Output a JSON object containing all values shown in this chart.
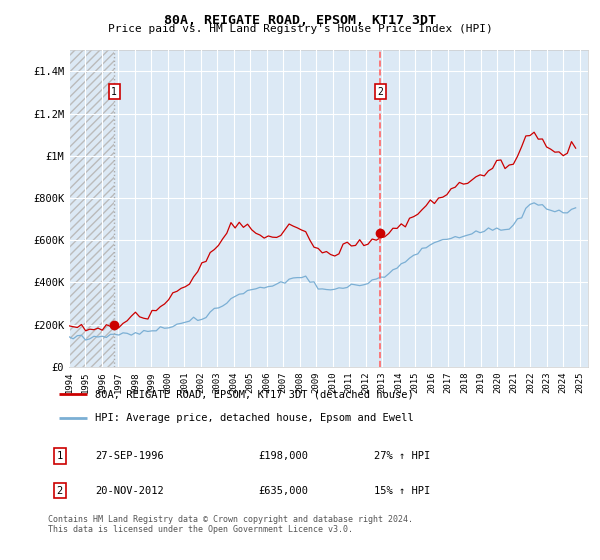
{
  "title": "80A, REIGATE ROAD, EPSOM, KT17 3DT",
  "subtitle": "Price paid vs. HM Land Registry's House Price Index (HPI)",
  "background_color": "#dce9f5",
  "plot_bg_color": "#dce9f5",
  "grid_color": "#ffffff",
  "ylim": [
    0,
    1500000
  ],
  "yticks": [
    0,
    200000,
    400000,
    600000,
    800000,
    1000000,
    1200000,
    1400000
  ],
  "ytick_labels": [
    "£0",
    "£200K",
    "£400K",
    "£600K",
    "£800K",
    "£1M",
    "£1.2M",
    "£1.4M"
  ],
  "xmin_year": 1994.0,
  "xmax_year": 2025.5,
  "sale1_year": 1996.74,
  "sale1_price": 198000,
  "sale1_label": "1",
  "sale1_date": "27-SEP-1996",
  "sale1_pct": "27%",
  "sale2_year": 2012.9,
  "sale2_price": 635000,
  "sale2_label": "2",
  "sale2_date": "20-NOV-2012",
  "sale2_pct": "15%",
  "red_line_color": "#cc0000",
  "blue_line_color": "#7bafd4",
  "marker_color": "#cc0000",
  "sale1_vline_color": "#aaaaaa",
  "sale1_vline_style": ":",
  "sale2_vline_color": "#ff6666",
  "sale2_vline_style": "--",
  "legend_line1": "80A, REIGATE ROAD, EPSOM, KT17 3DT (detached house)",
  "legend_line2": "HPI: Average price, detached house, Epsom and Ewell",
  "footer1": "Contains HM Land Registry data © Crown copyright and database right 2024.",
  "footer2": "This data is licensed under the Open Government Licence v3.0.",
  "hpi_values": [
    140000,
    141000,
    141500,
    142000,
    142500,
    143000,
    143500,
    144000,
    145000,
    146000,
    147000,
    148000,
    150000,
    152000,
    155000,
    157000,
    159000,
    162000,
    165000,
    168000,
    172000,
    176000,
    180000,
    184000,
    188000,
    193000,
    198000,
    203000,
    208000,
    213000,
    218000,
    223000,
    229000,
    240000,
    255000,
    268000,
    280000,
    295000,
    308000,
    318000,
    328000,
    340000,
    352000,
    360000,
    365000,
    368000,
    370000,
    372000,
    375000,
    382000,
    390000,
    398000,
    408000,
    418000,
    425000,
    428000,
    425000,
    418000,
    408000,
    395000,
    382000,
    372000,
    365000,
    360000,
    362000,
    368000,
    375000,
    380000,
    385000,
    390000,
    395000,
    398000,
    402000,
    408000,
    415000,
    420000,
    428000,
    440000,
    455000,
    470000,
    485000,
    502000,
    518000,
    532000,
    545000,
    558000,
    568000,
    578000,
    585000,
    592000,
    598000,
    605000,
    612000,
    618000,
    625000,
    630000,
    635000,
    638000,
    641000,
    643000,
    645000,
    648000,
    650000,
    652000,
    655000,
    652000,
    660000,
    675000,
    695000,
    720000,
    748000,
    768000,
    782000,
    778000,
    768000,
    752000,
    740000,
    735000,
    730000,
    732000,
    738000,
    745000,
    752000
  ],
  "red_values": [
    178000,
    180000,
    182000,
    183000,
    185000,
    186000,
    187000,
    188000,
    190000,
    192000,
    194000,
    196000,
    198000,
    202000,
    208000,
    216000,
    224000,
    232000,
    242000,
    252000,
    264000,
    276000,
    290000,
    305000,
    320000,
    338000,
    356000,
    374000,
    392000,
    412000,
    432000,
    452000,
    472000,
    498000,
    530000,
    562000,
    590000,
    618000,
    642000,
    658000,
    668000,
    675000,
    672000,
    665000,
    645000,
    635000,
    625000,
    618000,
    615000,
    620000,
    628000,
    638000,
    648000,
    658000,
    665000,
    660000,
    645000,
    625000,
    598000,
    572000,
    548000,
    535000,
    528000,
    530000,
    540000,
    552000,
    562000,
    570000,
    575000,
    580000,
    585000,
    588000,
    592000,
    598000,
    605000,
    612000,
    618000,
    628000,
    640000,
    655000,
    670000,
    688000,
    705000,
    722000,
    738000,
    755000,
    768000,
    780000,
    790000,
    800000,
    810000,
    820000,
    832000,
    845000,
    858000,
    868000,
    878000,
    888000,
    898000,
    908000,
    918000,
    928000,
    938000,
    948000,
    958000,
    950000,
    960000,
    978000,
    1005000,
    1040000,
    1080000,
    1105000,
    1120000,
    1105000,
    1082000,
    1055000,
    1038000,
    1028000,
    1020000,
    1022000,
    1030000,
    1042000,
    1052000
  ],
  "xtick_years": [
    1994,
    1995,
    1996,
    1997,
    1998,
    1999,
    2000,
    2001,
    2002,
    2003,
    2004,
    2005,
    2006,
    2007,
    2008,
    2009,
    2010,
    2011,
    2012,
    2013,
    2014,
    2015,
    2016,
    2017,
    2018,
    2019,
    2020,
    2021,
    2022,
    2023,
    2024,
    2025
  ]
}
